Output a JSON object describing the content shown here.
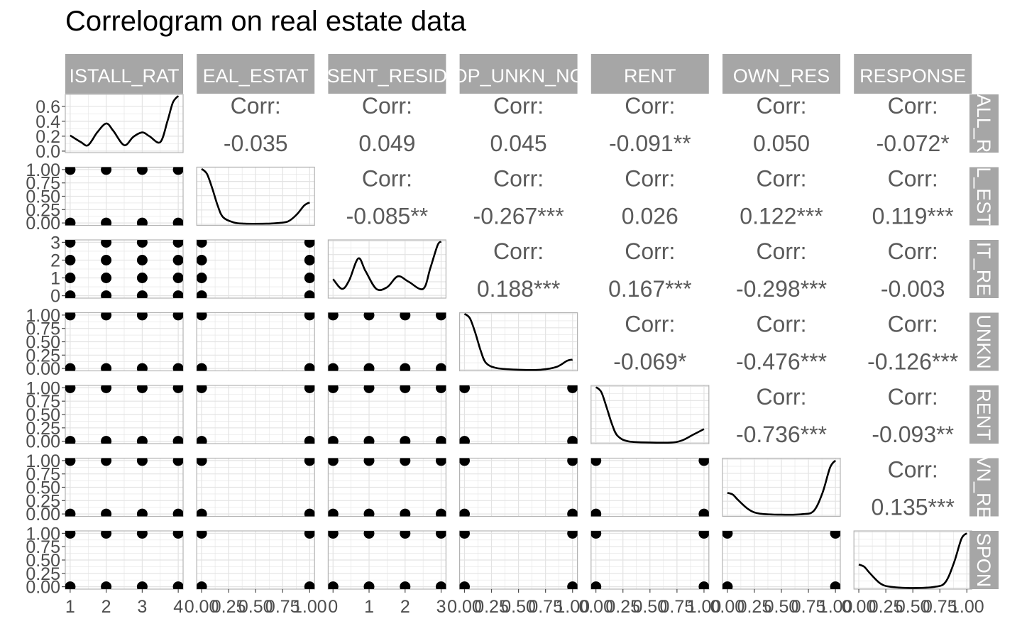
{
  "chart_data": {
    "type": "scatter",
    "title": "Correlogram on real estate data",
    "variables": [
      {
        "name": "INSTALL_RATE",
        "strip_top": "ISTALL_RAT",
        "strip_right": "ALL_R",
        "values": [
          1,
          2,
          3,
          4
        ],
        "ticks": [
          "1",
          "2",
          "3",
          "4"
        ],
        "ticks_y": [
          "0.0",
          "0.2",
          "0.4",
          "0.6"
        ],
        "density": [
          [
            1.0,
            0.21
          ],
          [
            1.3,
            0.12
          ],
          [
            1.5,
            0.08
          ],
          [
            1.75,
            0.25
          ],
          [
            2.0,
            0.37
          ],
          [
            2.2,
            0.27
          ],
          [
            2.5,
            0.08
          ],
          [
            2.75,
            0.19
          ],
          [
            3.0,
            0.25
          ],
          [
            3.2,
            0.2
          ],
          [
            3.5,
            0.12
          ],
          [
            3.7,
            0.4
          ],
          [
            3.85,
            0.65
          ],
          [
            4.0,
            0.74
          ]
        ],
        "density_ylim": [
          -0.02,
          0.76
        ]
      },
      {
        "name": "REAL_ESTATE",
        "strip_top": "EAL_ESTAT",
        "strip_right": "L_EST",
        "values": [
          0,
          1
        ],
        "ticks": [
          "0.00",
          "0.25",
          "0.50",
          "0.75",
          "1.00"
        ],
        "ticks_y": [
          "0.00",
          "0.25",
          "0.50",
          "0.75",
          "1.00"
        ],
        "density": [
          [
            0.0,
            0.97
          ],
          [
            0.05,
            0.88
          ],
          [
            0.1,
            0.62
          ],
          [
            0.15,
            0.32
          ],
          [
            0.2,
            0.12
          ],
          [
            0.3,
            0.03
          ],
          [
            0.4,
            0.01
          ],
          [
            0.6,
            0.01
          ],
          [
            0.7,
            0.02
          ],
          [
            0.8,
            0.05
          ],
          [
            0.88,
            0.17
          ],
          [
            0.95,
            0.33
          ],
          [
            1.0,
            0.38
          ]
        ],
        "density_ylim": [
          -0.02,
          1.0
        ]
      },
      {
        "name": "PRESENT_RESIDENT",
        "strip_top": "SENT_RESID",
        "strip_right": "IT_RE",
        "values": [
          0,
          1,
          2,
          3
        ],
        "ticks": [
          "0",
          "1",
          "2",
          "3"
        ],
        "ticks_y": [
          "0",
          "1",
          "2",
          "3"
        ],
        "density": [
          [
            0.0,
            0.3
          ],
          [
            0.25,
            0.12
          ],
          [
            0.45,
            0.28
          ],
          [
            0.7,
            0.68
          ],
          [
            0.9,
            0.45
          ],
          [
            1.2,
            0.12
          ],
          [
            1.5,
            0.15
          ],
          [
            1.8,
            0.35
          ],
          [
            2.1,
            0.25
          ],
          [
            2.5,
            0.12
          ],
          [
            2.7,
            0.5
          ],
          [
            2.9,
            0.92
          ],
          [
            3.0,
            0.99
          ]
        ],
        "density_ylim": [
          -0.05,
          1.02
        ]
      },
      {
        "name": "PROP_UNKN_NONE",
        "strip_top": "OP_UNKN_NO",
        "strip_right": "UNKN",
        "values": [
          0,
          1
        ],
        "ticks": [
          "0.00",
          "0.25",
          "0.50",
          "0.75",
          "1.00"
        ],
        "ticks_y": [
          "0.00",
          "0.25",
          "0.50",
          "0.75",
          "1.00"
        ],
        "density": [
          [
            0.0,
            1.0
          ],
          [
            0.05,
            0.92
          ],
          [
            0.1,
            0.66
          ],
          [
            0.15,
            0.34
          ],
          [
            0.2,
            0.12
          ],
          [
            0.3,
            0.03
          ],
          [
            0.5,
            0.0
          ],
          [
            0.7,
            0.0
          ],
          [
            0.85,
            0.05
          ],
          [
            0.95,
            0.16
          ],
          [
            1.0,
            0.18
          ]
        ],
        "density_ylim": [
          -0.02,
          1.02
        ]
      },
      {
        "name": "RENT",
        "strip_top": "RENT",
        "strip_right": "RENT",
        "values": [
          0,
          1
        ],
        "ticks": [
          "0.00",
          "0.25",
          "0.50",
          "0.75",
          "1.00"
        ],
        "ticks_y": [
          "0.00",
          "0.25",
          "0.50",
          "0.75",
          "1.00"
        ],
        "density": [
          [
            0.0,
            0.99
          ],
          [
            0.05,
            0.9
          ],
          [
            0.1,
            0.62
          ],
          [
            0.15,
            0.32
          ],
          [
            0.2,
            0.12
          ],
          [
            0.3,
            0.02
          ],
          [
            0.5,
            0.0
          ],
          [
            0.7,
            0.0
          ],
          [
            0.8,
            0.04
          ],
          [
            0.9,
            0.14
          ],
          [
            1.0,
            0.24
          ]
        ],
        "density_ylim": [
          -0.02,
          1.02
        ]
      },
      {
        "name": "OWN_RES",
        "strip_top": "OWN_RES",
        "strip_right": "VN_RE",
        "values": [
          0,
          1
        ],
        "ticks": [
          "0.00",
          "0.25",
          "0.50",
          "0.75",
          "1.00"
        ],
        "ticks_y": [
          "0.00",
          "0.25",
          "0.50",
          "0.75",
          "1.00"
        ],
        "density": [
          [
            0.0,
            0.4
          ],
          [
            0.05,
            0.37
          ],
          [
            0.1,
            0.27
          ],
          [
            0.2,
            0.1
          ],
          [
            0.3,
            0.03
          ],
          [
            0.5,
            0.01
          ],
          [
            0.7,
            0.02
          ],
          [
            0.8,
            0.08
          ],
          [
            0.88,
            0.4
          ],
          [
            0.95,
            0.85
          ],
          [
            1.0,
            0.98
          ]
        ],
        "density_ylim": [
          -0.02,
          1.02
        ]
      },
      {
        "name": "RESPONSE",
        "strip_top": "RESPONSE",
        "strip_right": "SPON",
        "values": [
          0,
          1
        ],
        "ticks": [
          "0.00",
          "0.25",
          "0.50",
          "0.75",
          "1.00"
        ],
        "ticks_y": [
          "0.00",
          "0.25",
          "0.50",
          "0.75",
          "1.00"
        ],
        "density": [
          [
            0.0,
            0.42
          ],
          [
            0.05,
            0.38
          ],
          [
            0.1,
            0.27
          ],
          [
            0.2,
            0.08
          ],
          [
            0.3,
            0.02
          ],
          [
            0.5,
            0.0
          ],
          [
            0.7,
            0.02
          ],
          [
            0.8,
            0.1
          ],
          [
            0.88,
            0.45
          ],
          [
            0.95,
            0.88
          ],
          [
            1.0,
            0.98
          ]
        ],
        "density_ylim": [
          -0.02,
          1.02
        ]
      }
    ],
    "correlations": [
      {
        "row": 0,
        "col": 1,
        "label": "Corr:",
        "value": "-0.035"
      },
      {
        "row": 0,
        "col": 2,
        "label": "Corr:",
        "value": "0.049"
      },
      {
        "row": 0,
        "col": 3,
        "label": "Corr:",
        "value": "0.045"
      },
      {
        "row": 0,
        "col": 4,
        "label": "Corr:",
        "value": "-0.091**"
      },
      {
        "row": 0,
        "col": 5,
        "label": "Corr:",
        "value": "0.050"
      },
      {
        "row": 0,
        "col": 6,
        "label": "Corr:",
        "value": "-0.072*"
      },
      {
        "row": 1,
        "col": 2,
        "label": "Corr:",
        "value": "-0.085**"
      },
      {
        "row": 1,
        "col": 3,
        "label": "Corr:",
        "value": "-0.267***"
      },
      {
        "row": 1,
        "col": 4,
        "label": "Corr:",
        "value": "0.026"
      },
      {
        "row": 1,
        "col": 5,
        "label": "Corr:",
        "value": "0.122***"
      },
      {
        "row": 1,
        "col": 6,
        "label": "Corr:",
        "value": "0.119***"
      },
      {
        "row": 2,
        "col": 3,
        "label": "Corr:",
        "value": "0.188***"
      },
      {
        "row": 2,
        "col": 4,
        "label": "Corr:",
        "value": "0.167***"
      },
      {
        "row": 2,
        "col": 5,
        "label": "Corr:",
        "value": "-0.298***"
      },
      {
        "row": 2,
        "col": 6,
        "label": "Corr:",
        "value": "-0.003"
      },
      {
        "row": 3,
        "col": 4,
        "label": "Corr:",
        "value": "-0.069*"
      },
      {
        "row": 3,
        "col": 5,
        "label": "Corr:",
        "value": "-0.476***"
      },
      {
        "row": 3,
        "col": 6,
        "label": "Corr:",
        "value": "-0.126***"
      },
      {
        "row": 4,
        "col": 5,
        "label": "Corr:",
        "value": "-0.736***"
      },
      {
        "row": 4,
        "col": 6,
        "label": "Corr:",
        "value": "-0.093**"
      },
      {
        "row": 5,
        "col": 6,
        "label": "Corr:",
        "value": "0.135***"
      }
    ],
    "colors": {
      "strip": "#a6a6a6",
      "strip_text": "#ffffff",
      "panel_border": "#b3b3b3",
      "grid": "#e3e3e3",
      "corr_text": "#5a5a5a",
      "ink": "#000000",
      "axis_text": "#4d4d4d"
    }
  }
}
